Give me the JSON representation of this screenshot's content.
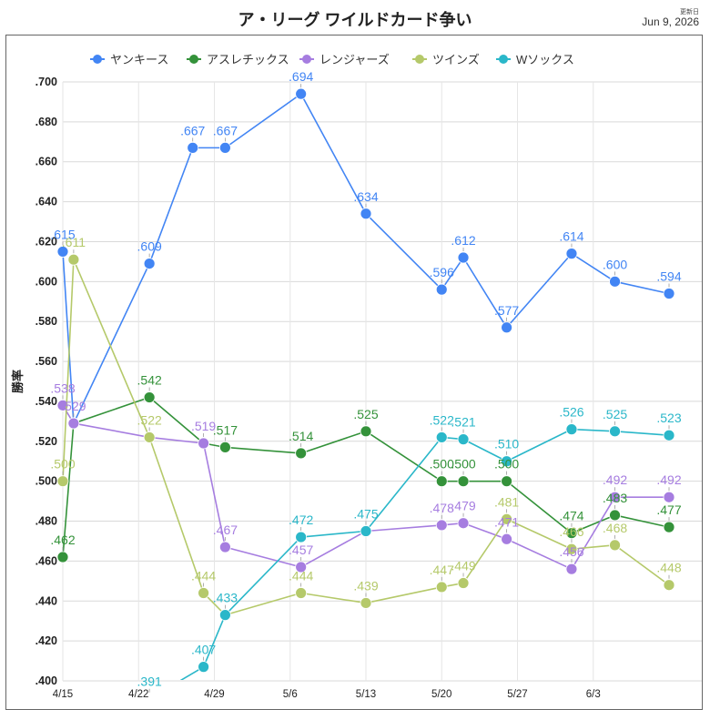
{
  "header": {
    "title": "ア・リーグ ワイルドカード争い",
    "updated_label": "更新日",
    "updated_date": "Jun 9, 2026"
  },
  "chart_data": {
    "type": "line",
    "title": "ア・リーグ ワイルドカード争い",
    "ylabel": "勝率",
    "xlabel": "",
    "ylim": [
      0.4,
      0.7
    ],
    "yticks": [
      0.4,
      0.42,
      0.44,
      0.46,
      0.48,
      0.5,
      0.52,
      0.54,
      0.56,
      0.58,
      0.6,
      0.62,
      0.64,
      0.66,
      0.68,
      0.7
    ],
    "ytick_labels": [
      ".400",
      ".420",
      ".440",
      ".460",
      ".480",
      ".500",
      ".520",
      ".540",
      ".560",
      ".580",
      ".600",
      ".620",
      ".640",
      ".660",
      ".680",
      ".700"
    ],
    "x_range": [
      "2026-04-15",
      "2026-06-10"
    ],
    "xticks": [
      "2026-04-15",
      "2026-04-22",
      "2026-04-29",
      "2026-05-06",
      "2026-05-13",
      "2026-05-20",
      "2026-05-27",
      "2026-06-03"
    ],
    "xtick_labels": [
      "4/15",
      "4/22",
      "4/29",
      "5/6",
      "5/13",
      "5/20",
      "5/27",
      "6/3"
    ],
    "grid": true,
    "legend_position": "top",
    "series": [
      {
        "name": "ヤンキース",
        "color": "#4285f4",
        "points": [
          {
            "x": "2026-04-15",
            "y": 0.615,
            "label": ".615"
          },
          {
            "x": "2026-04-16",
            "y": 0.529,
            "label": ""
          },
          {
            "x": "2026-04-23",
            "y": 0.609,
            "label": ".609"
          },
          {
            "x": "2026-04-27",
            "y": 0.667,
            "label": ".667"
          },
          {
            "x": "2026-04-30",
            "y": 0.667,
            "label": ".667"
          },
          {
            "x": "2026-05-07",
            "y": 0.694,
            "label": ".694"
          },
          {
            "x": "2026-05-13",
            "y": 0.634,
            "label": ".634"
          },
          {
            "x": "2026-05-20",
            "y": 0.596,
            "label": ".596"
          },
          {
            "x": "2026-05-22",
            "y": 0.612,
            "label": ".612"
          },
          {
            "x": "2026-05-26",
            "y": 0.577,
            "label": ".577"
          },
          {
            "x": "2026-06-01",
            "y": 0.614,
            "label": ".614"
          },
          {
            "x": "2026-06-05",
            "y": 0.6,
            "label": ".600"
          },
          {
            "x": "2026-06-10",
            "y": 0.594,
            "label": ".594"
          }
        ]
      },
      {
        "name": "アスレチックス",
        "color": "#34923a",
        "points": [
          {
            "x": "2026-04-15",
            "y": 0.462,
            "label": ".462"
          },
          {
            "x": "2026-04-16",
            "y": 0.529,
            "label": ""
          },
          {
            "x": "2026-04-23",
            "y": 0.542,
            "label": ".542"
          },
          {
            "x": "2026-04-28",
            "y": 0.519,
            "label": ""
          },
          {
            "x": "2026-04-30",
            "y": 0.517,
            "label": ".517"
          },
          {
            "x": "2026-05-07",
            "y": 0.514,
            "label": ".514"
          },
          {
            "x": "2026-05-13",
            "y": 0.525,
            "label": ".525"
          },
          {
            "x": "2026-05-20",
            "y": 0.5,
            "label": ".500"
          },
          {
            "x": "2026-05-22",
            "y": 0.5,
            "label": ".500"
          },
          {
            "x": "2026-05-26",
            "y": 0.5,
            "label": ".500"
          },
          {
            "x": "2026-06-01",
            "y": 0.474,
            "label": ".474"
          },
          {
            "x": "2026-06-05",
            "y": 0.483,
            "label": ".483"
          },
          {
            "x": "2026-06-10",
            "y": 0.477,
            "label": ".477"
          }
        ]
      },
      {
        "name": "レンジャーズ",
        "color": "#a67de0",
        "points": [
          {
            "x": "2026-04-15",
            "y": 0.538,
            "label": ".538"
          },
          {
            "x": "2026-04-16",
            "y": 0.529,
            "label": ".529"
          },
          {
            "x": "2026-04-23",
            "y": 0.522,
            "label": ""
          },
          {
            "x": "2026-04-28",
            "y": 0.519,
            "label": ".519"
          },
          {
            "x": "2026-04-30",
            "y": 0.467,
            "label": ".467"
          },
          {
            "x": "2026-05-07",
            "y": 0.457,
            "label": ".457"
          },
          {
            "x": "2026-05-13",
            "y": 0.475,
            "label": ""
          },
          {
            "x": "2026-05-20",
            "y": 0.478,
            "label": ".478"
          },
          {
            "x": "2026-05-22",
            "y": 0.479,
            "label": ".479"
          },
          {
            "x": "2026-05-26",
            "y": 0.471,
            "label": ".471"
          },
          {
            "x": "2026-06-01",
            "y": 0.456,
            "label": ".456"
          },
          {
            "x": "2026-06-05",
            "y": 0.492,
            "label": ".492"
          },
          {
            "x": "2026-06-10",
            "y": 0.492,
            "label": ".492"
          }
        ]
      },
      {
        "name": "ツインズ",
        "color": "#b5c96a",
        "points": [
          {
            "x": "2026-04-15",
            "y": 0.5,
            "label": ".500"
          },
          {
            "x": "2026-04-16",
            "y": 0.611,
            "label": ".611"
          },
          {
            "x": "2026-04-23",
            "y": 0.522,
            "label": ".522"
          },
          {
            "x": "2026-04-28",
            "y": 0.444,
            "label": ".444"
          },
          {
            "x": "2026-04-30",
            "y": 0.433,
            "label": ""
          },
          {
            "x": "2026-05-07",
            "y": 0.444,
            "label": ".444"
          },
          {
            "x": "2026-05-13",
            "y": 0.439,
            "label": ".439"
          },
          {
            "x": "2026-05-20",
            "y": 0.447,
            "label": ".447"
          },
          {
            "x": "2026-05-22",
            "y": 0.449,
            "label": ".449"
          },
          {
            "x": "2026-05-26",
            "y": 0.481,
            "label": ".481"
          },
          {
            "x": "2026-06-01",
            "y": 0.466,
            "label": ".466"
          },
          {
            "x": "2026-06-05",
            "y": 0.468,
            "label": ".468"
          },
          {
            "x": "2026-06-10",
            "y": 0.448,
            "label": ".448"
          }
        ]
      },
      {
        "name": "Wソックス",
        "color": "#2ab7c9",
        "points": [
          {
            "x": "2026-04-23",
            "y": 0.391,
            "label": ".391"
          },
          {
            "x": "2026-04-28",
            "y": 0.407,
            "label": ".407"
          },
          {
            "x": "2026-04-30",
            "y": 0.433,
            "label": ".433"
          },
          {
            "x": "2026-05-07",
            "y": 0.472,
            "label": ".472"
          },
          {
            "x": "2026-05-13",
            "y": 0.475,
            "label": ".475"
          },
          {
            "x": "2026-05-20",
            "y": 0.522,
            "label": ".522"
          },
          {
            "x": "2026-05-22",
            "y": 0.521,
            "label": ".521"
          },
          {
            "x": "2026-05-26",
            "y": 0.51,
            "label": ".510"
          },
          {
            "x": "2026-06-01",
            "y": 0.526,
            "label": ".526"
          },
          {
            "x": "2026-06-05",
            "y": 0.525,
            "label": ".525"
          },
          {
            "x": "2026-06-10",
            "y": 0.523,
            "label": ".523"
          }
        ]
      }
    ]
  }
}
